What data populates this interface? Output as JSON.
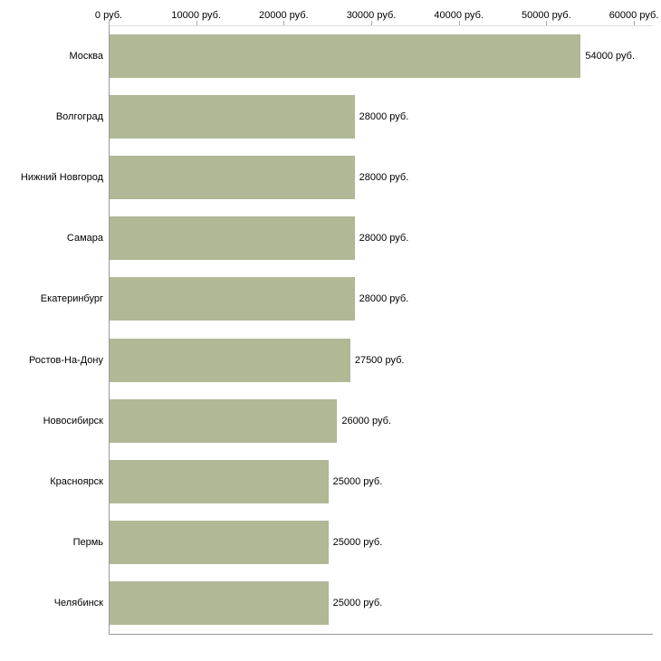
{
  "chart_data": {
    "type": "bar",
    "orientation": "horizontal",
    "title": "",
    "xlabel": "",
    "ylabel": "",
    "xlim": [
      0,
      60000
    ],
    "grid": false,
    "legend": false,
    "bar_color": "#b0b896",
    "x_ticks": [
      {
        "value": 0,
        "label": "0 руб."
      },
      {
        "value": 10000,
        "label": "10000 руб."
      },
      {
        "value": 20000,
        "label": "20000 руб."
      },
      {
        "value": 30000,
        "label": "30000 руб."
      },
      {
        "value": 40000,
        "label": "40000 руб."
      },
      {
        "value": 50000,
        "label": "50000 руб."
      },
      {
        "value": 60000,
        "label": "60000 руб."
      }
    ],
    "categories": [
      "Москва",
      "Волгоград",
      "Нижний Новгород",
      "Самара",
      "Екатеринбург",
      "Ростов-На-Дону",
      "Новосибирск",
      "Красноярск",
      "Пермь",
      "Челябинск"
    ],
    "values": [
      54000,
      28000,
      28000,
      28000,
      28000,
      27500,
      26000,
      25000,
      25000,
      25000
    ],
    "value_labels": [
      "54000 руб.",
      "28000 руб.",
      "28000 руб.",
      "28000 руб.",
      "28000 руб.",
      "27500 руб.",
      "26000 руб.",
      "25000 руб.",
      "25000 руб.",
      "25000 руб."
    ]
  }
}
